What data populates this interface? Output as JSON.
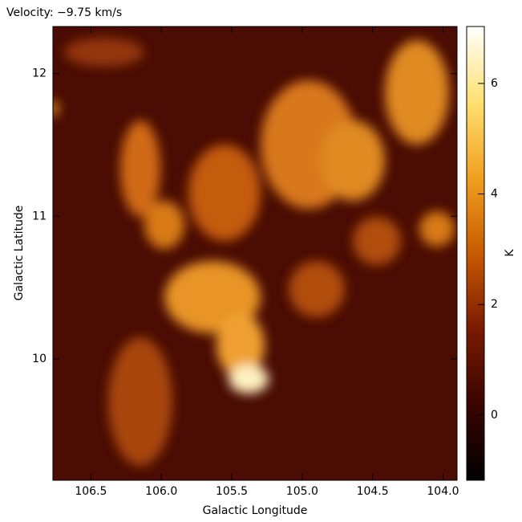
{
  "chart_data": {
    "type": "image",
    "title": "Velocity: −9.75 km/s",
    "x_label": "Galactic Longitude",
    "y_label": "Galactic Latitude",
    "xlim": [
      106.77,
      103.9
    ],
    "xticks": [
      {
        "value": 106.5,
        "label": "106.5"
      },
      {
        "value": 106.0,
        "label": "106.0"
      },
      {
        "value": 105.5,
        "label": "105.5"
      },
      {
        "value": 105.0,
        "label": "105.0"
      },
      {
        "value": 104.5,
        "label": "104.5"
      },
      {
        "value": 104.0,
        "label": "104.0"
      }
    ],
    "ylim": [
      9.15,
      12.33
    ],
    "yticks": [
      10,
      11,
      12
    ],
    "colorbar": {
      "label": "K",
      "lim": [
        -1.18,
        7.03
      ],
      "ticks": [
        0,
        2,
        4,
        6
      ],
      "colormap": [
        "#000000",
        "#3a0500",
        "#7a1a00",
        "#c85a00",
        "#f0a020",
        "#ffe070",
        "#ffffff"
      ]
    }
  }
}
